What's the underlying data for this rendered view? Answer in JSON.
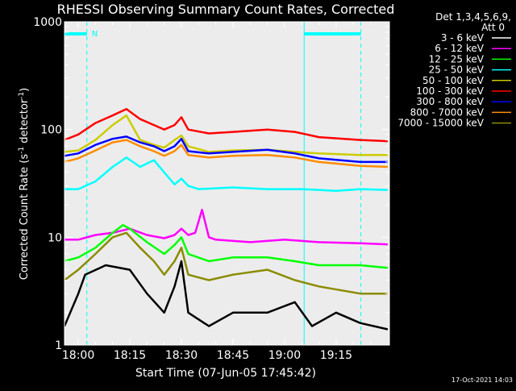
{
  "chart_data": {
    "type": "line",
    "title": "RHESSI Observing Summary Count Rates, Corrected",
    "ylabel_main": "Corrected Count Rate (s",
    "ylabel_sup1": "-1",
    "ylabel_mid": " detector",
    "ylabel_sup2": "-1",
    "ylabel_end": ")",
    "xlabel": "Start Time (07-Jun-05 17:45:42)",
    "timestamp": "17-Oct-2021 14:03",
    "y_scale": "log",
    "ylim": [
      1,
      1000
    ],
    "xlim_minutes": [
      -4.0,
      90.5
    ],
    "x_ticks": [
      {
        "label": "18:00",
        "minute": 0
      },
      {
        "label": "18:15",
        "minute": 15
      },
      {
        "label": "18:30",
        "minute": 30
      },
      {
        "label": "18:45",
        "minute": 45
      },
      {
        "label": "19:00",
        "minute": 60
      },
      {
        "label": "19:15",
        "minute": 75
      }
    ],
    "y_ticks": [
      {
        "label": "1",
        "value": 1
      },
      {
        "label": "10",
        "value": 10
      },
      {
        "label": "100",
        "value": 100
      },
      {
        "label": "1000",
        "value": 1000
      }
    ],
    "legend_header": [
      "Det 1,3,4,5,6,9,",
      "Att 0"
    ],
    "legend_position": "top-right",
    "flag_marker": "N",
    "night_intervals_minutes": [
      [
        -14.5,
        2.5
      ],
      [
        65.7,
        82.2
      ]
    ],
    "saa_intervals_minutes": [],
    "series": [
      {
        "name": "3 - 6 keV",
        "color": "#000000",
        "points": [
          [
            -4,
            1.5
          ],
          [
            0,
            3.0
          ],
          [
            2,
            4.5
          ],
          [
            8,
            5.5
          ],
          [
            15,
            5.0
          ],
          [
            20,
            3.0
          ],
          [
            25,
            2.0
          ],
          [
            28,
            3.5
          ],
          [
            30,
            6.0
          ],
          [
            32,
            2.0
          ],
          [
            38,
            1.5
          ],
          [
            45,
            2.0
          ],
          [
            55,
            2.0
          ],
          [
            63,
            2.5
          ],
          [
            68,
            1.5
          ],
          [
            75,
            2.0
          ],
          [
            82,
            1.6
          ],
          [
            90,
            1.4
          ]
        ]
      },
      {
        "name": "6 - 12 keV",
        "color": "#ff00ff",
        "points": [
          [
            -4,
            9.5
          ],
          [
            0,
            9.5
          ],
          [
            5,
            10.5
          ],
          [
            10,
            11.0
          ],
          [
            15,
            12.0
          ],
          [
            20,
            10.5
          ],
          [
            25,
            9.8
          ],
          [
            28,
            10.5
          ],
          [
            30,
            12.0
          ],
          [
            32,
            10.5
          ],
          [
            34,
            11.0
          ],
          [
            36,
            18.0
          ],
          [
            38,
            10.0
          ],
          [
            40,
            9.5
          ],
          [
            50,
            9.0
          ],
          [
            60,
            9.5
          ],
          [
            70,
            9.0
          ],
          [
            82,
            8.8
          ],
          [
            90,
            8.6
          ]
        ]
      },
      {
        "name": "12 - 25 keV",
        "color": "#00ff00",
        "points": [
          [
            -4,
            6.0
          ],
          [
            0,
            6.5
          ],
          [
            5,
            8.0
          ],
          [
            10,
            11.0
          ],
          [
            13,
            13.0
          ],
          [
            15,
            12.0
          ],
          [
            20,
            9.0
          ],
          [
            25,
            7.0
          ],
          [
            28,
            8.5
          ],
          [
            30,
            10.0
          ],
          [
            32,
            7.0
          ],
          [
            38,
            6.0
          ],
          [
            45,
            6.5
          ],
          [
            55,
            6.5
          ],
          [
            63,
            6.0
          ],
          [
            70,
            5.5
          ],
          [
            82,
            5.5
          ],
          [
            90,
            5.2
          ]
        ]
      },
      {
        "name": "25 - 50 keV",
        "color": "#00ffff",
        "points": [
          [
            -4,
            28.0
          ],
          [
            0,
            28.0
          ],
          [
            5,
            33.0
          ],
          [
            10,
            45.0
          ],
          [
            14,
            55.0
          ],
          [
            18,
            45.0
          ],
          [
            22,
            52.0
          ],
          [
            25,
            40.0
          ],
          [
            28,
            31.0
          ],
          [
            30,
            35.0
          ],
          [
            32,
            30.0
          ],
          [
            35,
            28.0
          ],
          [
            45,
            29.0
          ],
          [
            55,
            28.0
          ],
          [
            65,
            28.0
          ],
          [
            75,
            27.0
          ],
          [
            82,
            28.0
          ],
          [
            90,
            27.5
          ]
        ]
      },
      {
        "name": "50 - 100 keV",
        "color": "#cccc00",
        "points": [
          [
            -4,
            62.0
          ],
          [
            0,
            64.0
          ],
          [
            5,
            80.0
          ],
          [
            10,
            110.0
          ],
          [
            14,
            135.0
          ],
          [
            18,
            80.0
          ],
          [
            22,
            72.0
          ],
          [
            25,
            68.0
          ],
          [
            28,
            80.0
          ],
          [
            30,
            88.0
          ],
          [
            32,
            70.0
          ],
          [
            38,
            62.0
          ],
          [
            45,
            64.0
          ],
          [
            55,
            65.0
          ],
          [
            63,
            62.0
          ],
          [
            70,
            60.0
          ],
          [
            82,
            58.0
          ],
          [
            90,
            58.0
          ]
        ]
      },
      {
        "name": "100 - 300 keV",
        "color": "#ff0000",
        "points": [
          [
            -4,
            80.0
          ],
          [
            0,
            90.0
          ],
          [
            5,
            115.0
          ],
          [
            10,
            135.0
          ],
          [
            14,
            155.0
          ],
          [
            18,
            125.0
          ],
          [
            22,
            110.0
          ],
          [
            25,
            100.0
          ],
          [
            28,
            110.0
          ],
          [
            30,
            130.0
          ],
          [
            32,
            100.0
          ],
          [
            38,
            92.0
          ],
          [
            45,
            95.0
          ],
          [
            55,
            100.0
          ],
          [
            63,
            95.0
          ],
          [
            70,
            85.0
          ],
          [
            82,
            80.0
          ],
          [
            90,
            78.0
          ]
        ]
      },
      {
        "name": "300 - 800 keV",
        "color": "#0000ff",
        "points": [
          [
            -4,
            57.0
          ],
          [
            0,
            60.0
          ],
          [
            5,
            72.0
          ],
          [
            10,
            82.0
          ],
          [
            14,
            86.0
          ],
          [
            18,
            76.0
          ],
          [
            22,
            70.0
          ],
          [
            25,
            63.0
          ],
          [
            28,
            70.0
          ],
          [
            30,
            82.0
          ],
          [
            32,
            63.0
          ],
          [
            38,
            60.0
          ],
          [
            45,
            62.0
          ],
          [
            55,
            65.0
          ],
          [
            63,
            60.0
          ],
          [
            70,
            54.0
          ],
          [
            82,
            50.0
          ],
          [
            90,
            50.0
          ]
        ]
      },
      {
        "name": "800 - 7000 keV",
        "color": "#ff8c00",
        "points": [
          [
            -4,
            50.0
          ],
          [
            0,
            54.0
          ],
          [
            5,
            64.0
          ],
          [
            10,
            76.0
          ],
          [
            14,
            80.0
          ],
          [
            18,
            70.0
          ],
          [
            22,
            63.0
          ],
          [
            25,
            57.0
          ],
          [
            28,
            63.0
          ],
          [
            30,
            72.0
          ],
          [
            32,
            58.0
          ],
          [
            38,
            55.0
          ],
          [
            45,
            57.0
          ],
          [
            55,
            58.0
          ],
          [
            63,
            55.0
          ],
          [
            70,
            50.0
          ],
          [
            82,
            46.0
          ],
          [
            90,
            45.0
          ]
        ]
      },
      {
        "name": "7000 - 15000 keV",
        "color": "#8b8b00",
        "points": [
          [
            -4,
            4.0
          ],
          [
            0,
            5.0
          ],
          [
            5,
            7.0
          ],
          [
            10,
            10.0
          ],
          [
            14,
            11.0
          ],
          [
            18,
            8.0
          ],
          [
            22,
            6.0
          ],
          [
            25,
            4.5
          ],
          [
            28,
            6.0
          ],
          [
            30,
            8.0
          ],
          [
            32,
            4.5
          ],
          [
            38,
            4.0
          ],
          [
            45,
            4.5
          ],
          [
            55,
            5.0
          ],
          [
            63,
            4.0
          ],
          [
            70,
            3.5
          ],
          [
            82,
            3.0
          ],
          [
            90,
            3.0
          ]
        ]
      }
    ]
  }
}
